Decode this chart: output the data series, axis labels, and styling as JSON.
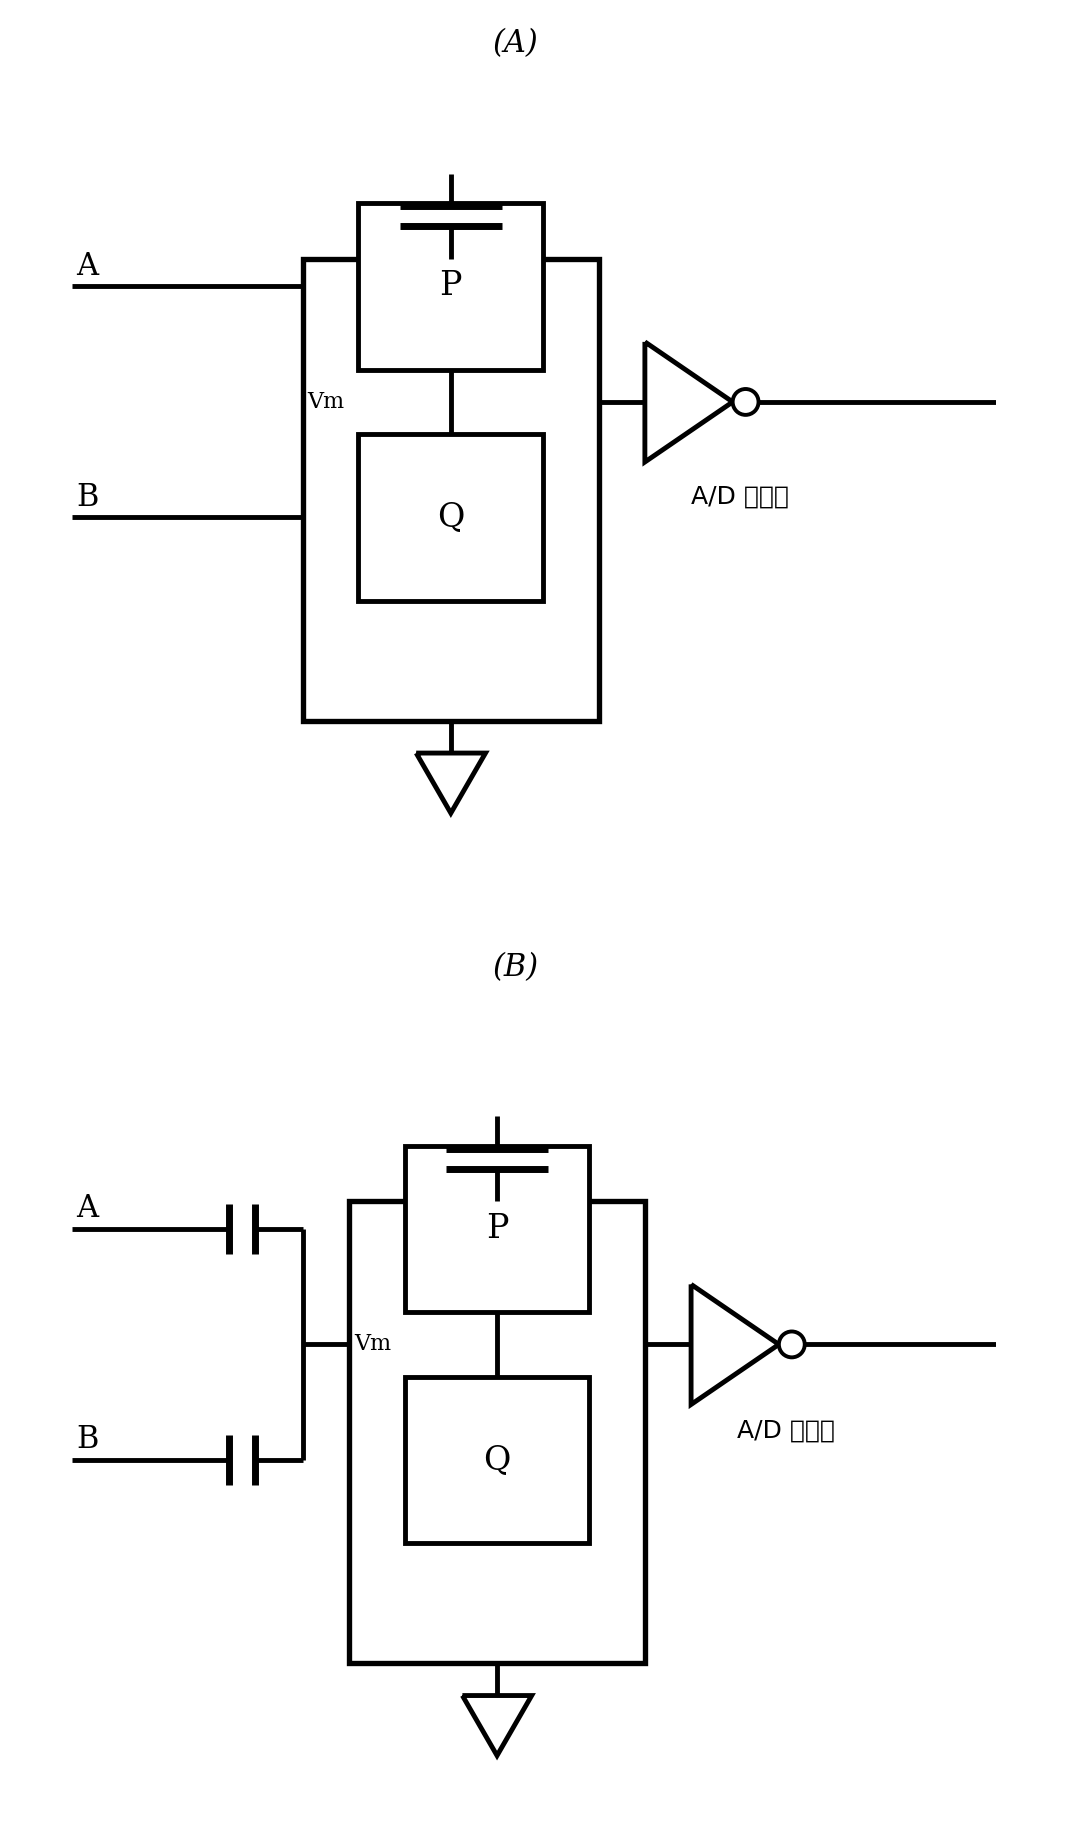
{
  "figure_width": 10.68,
  "figure_height": 18.48,
  "dpi": 100,
  "background_color": "#ffffff",
  "line_color": "#000000",
  "lw_main": 3.5,
  "lw_bar": 5.0,
  "label_A": "A",
  "label_B": "B",
  "label_P": "P",
  "label_Q": "Q",
  "label_Vm": "Vm",
  "label_AD": "A/D 倒相器",
  "label_panel_A": "(A)",
  "label_panel_B": "(B)",
  "font_size_label": 22,
  "font_size_panel": 22,
  "font_size_PQ": 24,
  "font_size_Vm": 16,
  "font_size_AD": 18
}
